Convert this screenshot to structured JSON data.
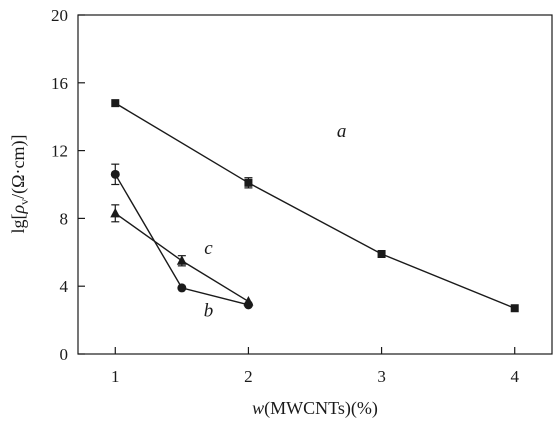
{
  "chart_data": {
    "type": "line",
    "xlabel": {
      "var": "w",
      "rest": "(MWCNTs)(%)"
    },
    "ylabel": {
      "prefix": "lg[",
      "rho": "ρ",
      "sub": "v",
      "suffix": "/(Ω·cm)]"
    },
    "xlim": [
      0.72,
      4.28
    ],
    "ylim": [
      0,
      20
    ],
    "x_ticks": [
      1,
      2,
      3,
      4
    ],
    "x_tick_labels": [
      "1",
      "2",
      "3",
      "4"
    ],
    "y_ticks": [
      0,
      4,
      8,
      12,
      16,
      20
    ],
    "y_tick_labels": [
      "0",
      "4",
      "8",
      "12",
      "16",
      "20"
    ],
    "grid": false,
    "series": [
      {
        "name": "a",
        "marker": "square",
        "x": [
          1,
          2,
          3,
          4
        ],
        "y": [
          14.8,
          10.1,
          5.9,
          2.7
        ],
        "err": [
          0,
          0.3,
          0,
          0
        ]
      },
      {
        "name": "b",
        "marker": "circle",
        "x": [
          1,
          1.5,
          2
        ],
        "y": [
          10.6,
          3.9,
          2.9
        ],
        "err": [
          0.6,
          0,
          0
        ]
      },
      {
        "name": "c",
        "marker": "triangle",
        "x": [
          1,
          1.5,
          2
        ],
        "y": [
          8.3,
          5.5,
          3.1
        ],
        "err": [
          0.5,
          0.3,
          0
        ]
      }
    ],
    "annotations": [
      {
        "text": "a",
        "x": 2.7,
        "y": 12.8
      },
      {
        "text": "c",
        "x": 1.7,
        "y": 5.9
      },
      {
        "text": "b",
        "x": 1.7,
        "y": 2.2
      }
    ]
  }
}
